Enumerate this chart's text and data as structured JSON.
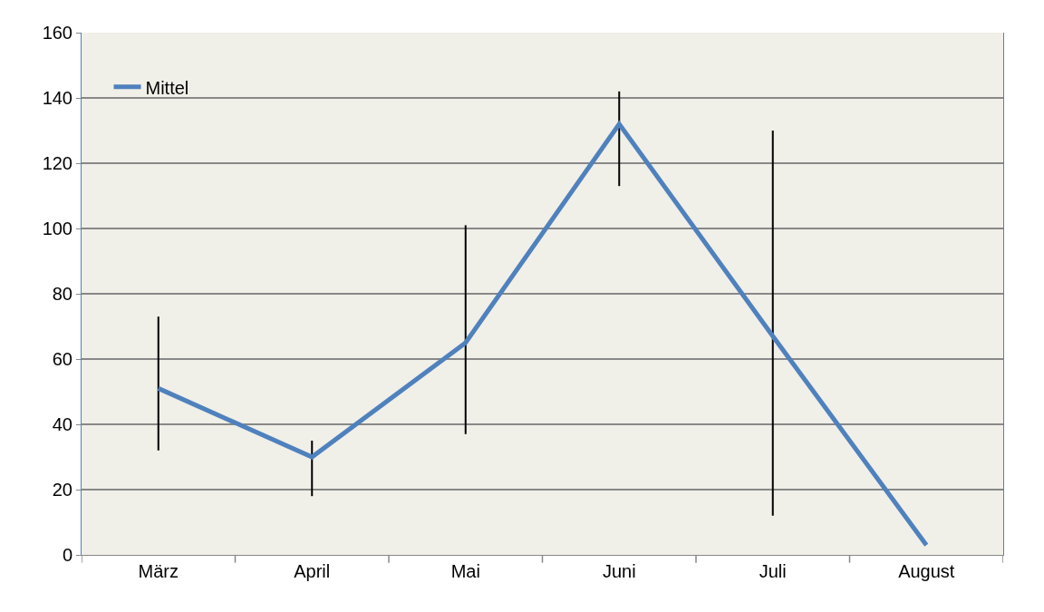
{
  "chart_data": {
    "type": "line",
    "categories": [
      "März",
      "April",
      "Mai",
      "Juni",
      "Juli",
      "August"
    ],
    "series": [
      {
        "name": "Mittel",
        "color": "#4f81bd",
        "values": [
          51,
          30,
          65,
          132,
          67,
          3
        ],
        "errors": [
          [
            32,
            73
          ],
          [
            18,
            35
          ],
          [
            37,
            101
          ],
          [
            113,
            142
          ],
          [
            12,
            130
          ],
          null
        ]
      }
    ],
    "ylim": [
      0,
      160
    ],
    "yticks": [
      0,
      20,
      40,
      60,
      80,
      100,
      120,
      140,
      160
    ],
    "grid": "y",
    "legend": "top left",
    "marker": "none",
    "line_style": "solid"
  }
}
